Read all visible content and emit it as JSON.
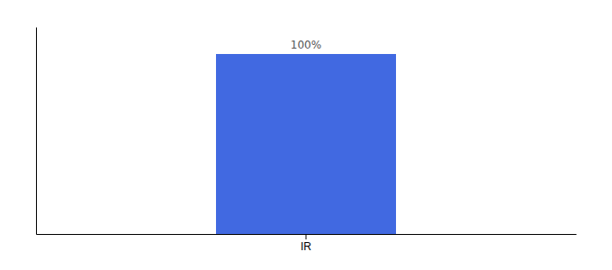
{
  "chart_data": {
    "type": "bar",
    "categories": [
      "IR"
    ],
    "values": [
      100
    ],
    "value_labels": [
      "100%"
    ],
    "data_labels": true,
    "color": "#4169e1",
    "ylim": [
      0,
      115
    ],
    "tick_labels": "x"
  }
}
